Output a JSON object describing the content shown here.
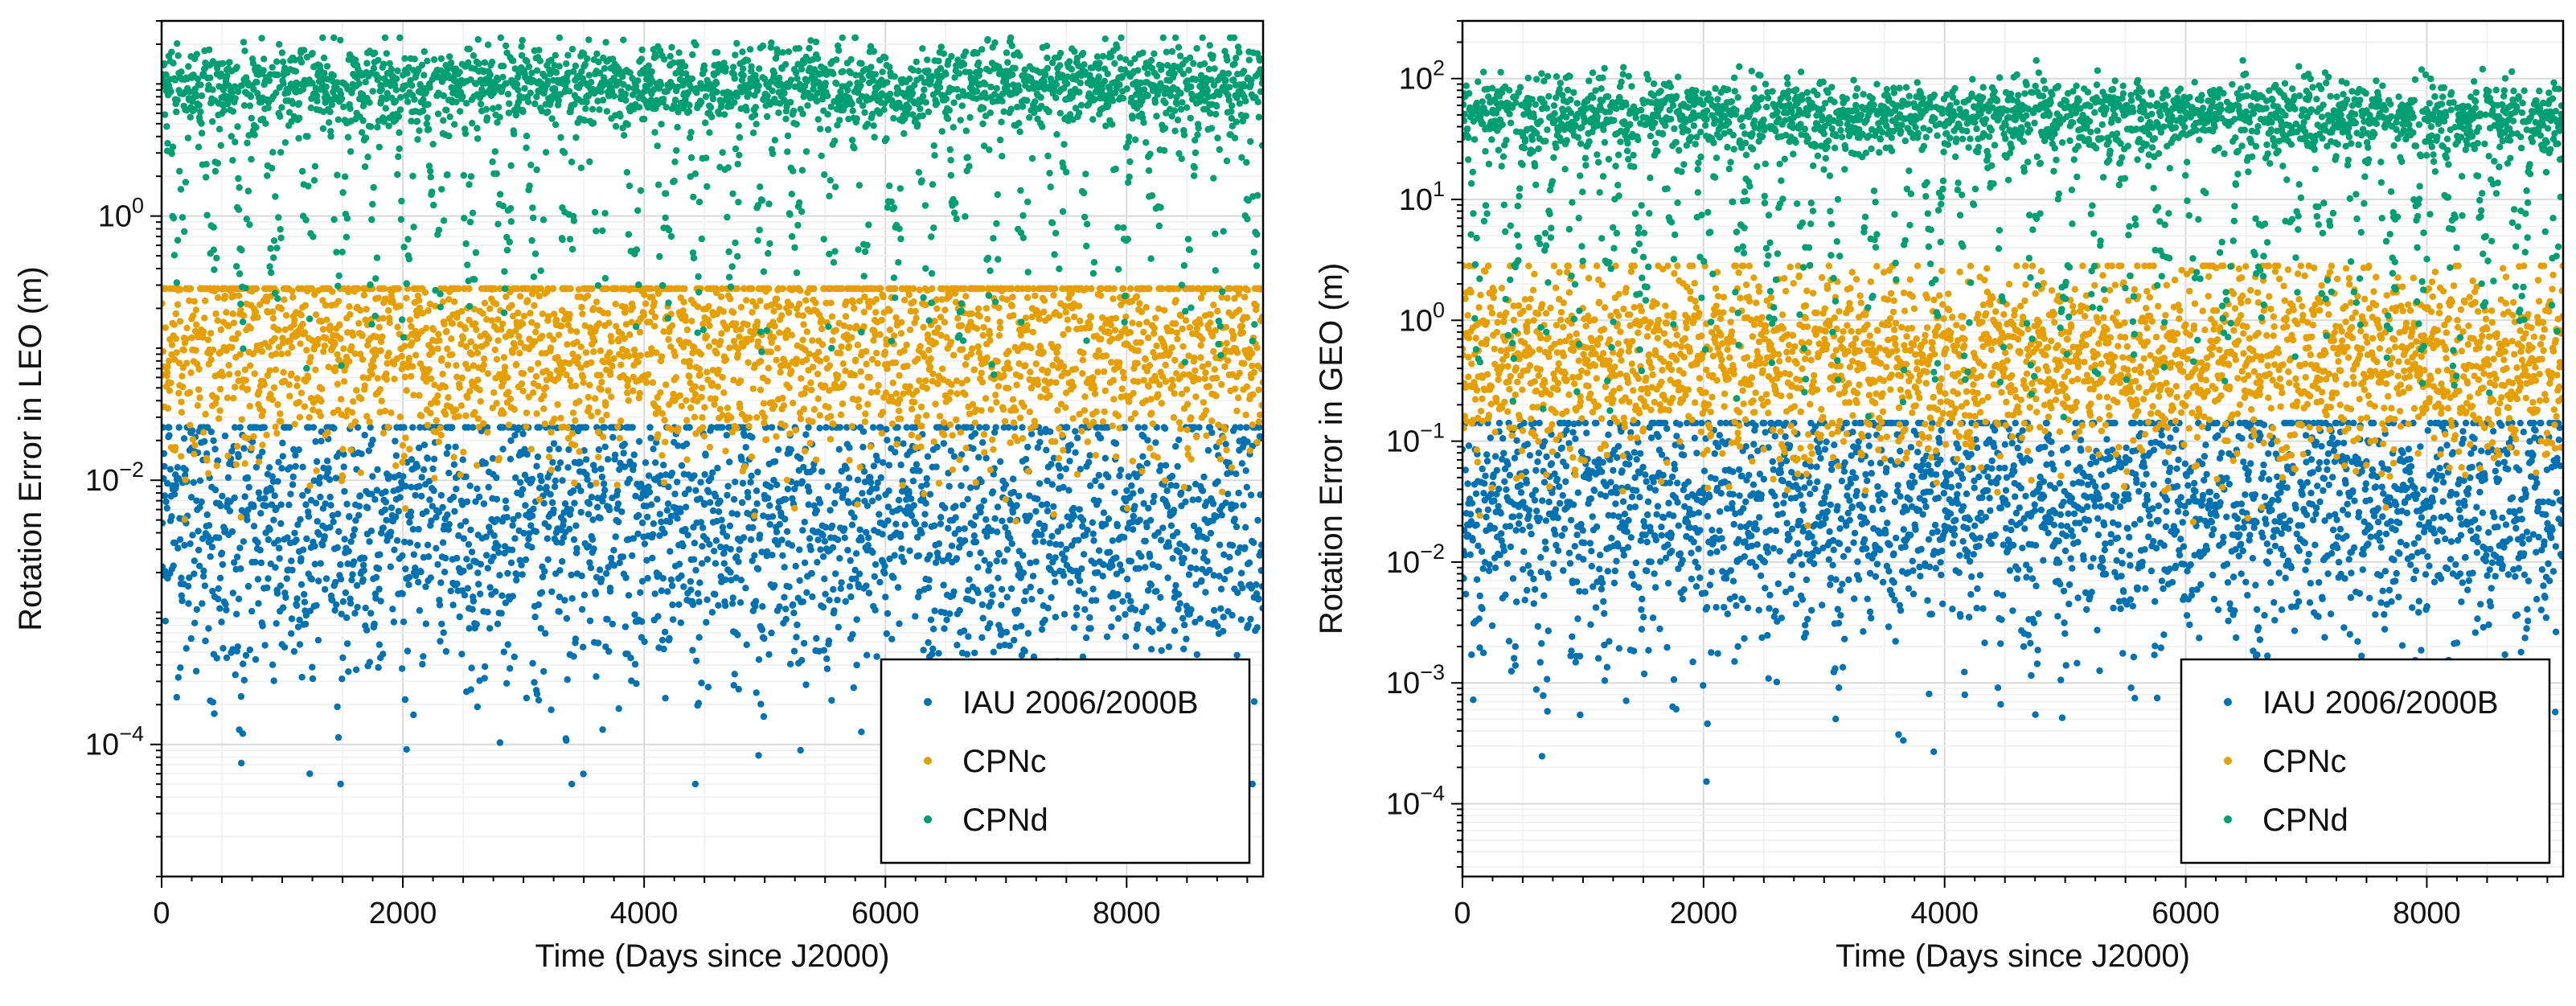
{
  "figure": {
    "colors": {
      "iau": "#0072b2",
      "cpnc": "#e69f00",
      "cpnd": "#009e73",
      "frame": "#000000",
      "grid": "#d9d9d9"
    }
  },
  "chart_data": [
    {
      "type": "scatter",
      "name": "leo",
      "xlabel": "Time (Days since J2000)",
      "ylabel": "Rotation Error in LEO (m)",
      "yscale": "log",
      "xlim": [
        0,
        9131
      ],
      "ylim": [
        1e-05,
        30
      ],
      "xticks": [
        0,
        2000,
        4000,
        6000,
        8000
      ],
      "xtick_labels": [
        "0",
        "2000",
        "4000",
        "6000",
        "8000"
      ],
      "yticks": [
        0.0001,
        0.01,
        1
      ],
      "ytick_labels": [
        {
          "base": "10",
          "exp": "−4"
        },
        {
          "base": "10",
          "exp": "−2"
        },
        {
          "base": "10",
          "exp": "0"
        }
      ],
      "legend": {
        "position": "bottom-right",
        "entries": [
          "IAU 2006/2000B",
          "CPNc",
          "CPNd"
        ]
      },
      "series": [
        {
          "name": "IAU 2006/2000B",
          "color": "#0072b2",
          "center_log10": -2.25,
          "spread_log10": 0.5,
          "range_log10": [
            -4.3,
            -1.6
          ],
          "dip_depth": 0.9
        },
        {
          "name": "CPNc",
          "color": "#e69f00",
          "center_log10": -0.95,
          "spread_log10": 0.4,
          "range_log10": [
            -2.8,
            -0.55
          ],
          "dip_depth": 0.3
        },
        {
          "name": "CPNd",
          "color": "#009e73",
          "center_log10": 1.0,
          "spread_log10": 0.15,
          "range_log10": [
            -1.3,
            1.35
          ],
          "dip_depth": 1.4
        }
      ],
      "sample_points": 2600
    },
    {
      "type": "scatter",
      "name": "geo",
      "xlabel": "Time (Days since J2000)",
      "ylabel": "Rotation Error in GEO (m)",
      "yscale": "log",
      "xlim": [
        0,
        9131
      ],
      "ylim": [
        2.5e-05,
        300
      ],
      "xticks": [
        0,
        2000,
        4000,
        6000,
        8000
      ],
      "xtick_labels": [
        "0",
        "2000",
        "4000",
        "6000",
        "8000"
      ],
      "yticks": [
        0.0001,
        0.001,
        0.01,
        0.1,
        1,
        10,
        100
      ],
      "ytick_labels": [
        {
          "base": "10",
          "exp": "−4"
        },
        {
          "base": "10",
          "exp": "−3"
        },
        {
          "base": "10",
          "exp": "−2"
        },
        {
          "base": "10",
          "exp": "−1"
        },
        {
          "base": "10",
          "exp": "0"
        },
        {
          "base": "10",
          "exp": "1"
        },
        {
          "base": "10",
          "exp": "2"
        }
      ],
      "legend": {
        "position": "bottom-right",
        "entries": [
          "IAU 2006/2000B",
          "CPNc",
          "CPNd"
        ]
      },
      "series": [
        {
          "name": "IAU 2006/2000B",
          "color": "#0072b2",
          "center_log10": -1.45,
          "spread_log10": 0.45,
          "range_log10": [
            -4.3,
            -0.85
          ],
          "dip_depth": 1.0
        },
        {
          "name": "CPNc",
          "color": "#e69f00",
          "center_log10": -0.3,
          "spread_log10": 0.4,
          "range_log10": [
            -2.6,
            0.45
          ],
          "dip_depth": 0.3
        },
        {
          "name": "CPNd",
          "color": "#009e73",
          "center_log10": 1.7,
          "spread_log10": 0.15,
          "range_log10": [
            -0.8,
            2.15
          ],
          "dip_depth": 1.6
        }
      ],
      "sample_points": 2600
    }
  ]
}
